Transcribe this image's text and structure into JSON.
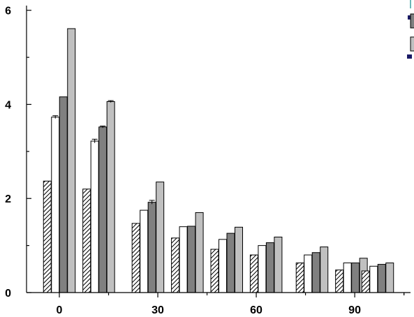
{
  "chart_data": {
    "type": "bar",
    "title": "",
    "xlabel": "",
    "ylabel": "",
    "ylim": [
      0,
      6.1
    ],
    "xlim": [
      -10,
      107
    ],
    "x_ticks": [
      "0",
      "30",
      "60",
      "90"
    ],
    "y_ticks": [
      "0",
      "2",
      "4",
      "6"
    ],
    "x_tick_values": [
      0,
      30,
      60,
      90
    ],
    "y_tick_values": [
      0,
      2,
      4,
      6
    ],
    "grid": false,
    "legend_placement": "top-right (clipped)",
    "categories": [
      0,
      12,
      27,
      39,
      51,
      63,
      77,
      90
    ],
    "series": [
      {
        "style": "hatched",
        "fill": "#ffffff",
        "values": [
          2.37,
          2.2,
          1.47,
          1.16,
          0.92,
          0.8,
          0.63,
          0.56
        ],
        "errors": [
          0,
          0,
          0,
          0,
          0,
          0,
          0,
          0
        ]
      },
      {
        "style": "solid",
        "fill": "#ffffff",
        "values": [
          3.73,
          3.22,
          1.75,
          1.4,
          1.13,
          1.0,
          0.8,
          0.72
        ],
        "errors": [
          0.03,
          0.04,
          0,
          0,
          0,
          0,
          0,
          0
        ]
      },
      {
        "style": "solid",
        "fill": "#808080",
        "values": [
          4.16,
          3.52,
          1.92,
          1.41,
          1.26,
          1.06,
          0.85,
          0.76
        ],
        "errors": [
          0,
          0.02,
          0.04,
          0,
          0,
          0,
          0,
          0
        ]
      },
      {
        "style": "solid",
        "fill": "#c0c0c0",
        "values": [
          5.61,
          4.06,
          2.35,
          1.7,
          1.39,
          1.18,
          0.97,
          0.79
        ],
        "errors": [
          0,
          0.02,
          0,
          0,
          0,
          0,
          0,
          0
        ]
      }
    ],
    "extra_bars": [
      {
        "series": 0,
        "x": 89,
        "value": 0.48
      },
      {
        "series": 1,
        "x": 89,
        "value": 0.63
      },
      {
        "series": 2,
        "x": 89,
        "value": 0.63
      },
      {
        "series": 3,
        "x": 89,
        "value": 0.73
      },
      {
        "series": 0,
        "x": 97,
        "value": 0.46
      },
      {
        "series": 1,
        "x": 97,
        "value": 0.56
      },
      {
        "series": 2,
        "x": 97,
        "value": 0.6
      },
      {
        "series": 3,
        "x": 97,
        "value": 0.63
      }
    ]
  },
  "colors": {
    "axis": "#000000",
    "legend_dark": "#808080",
    "legend_light": "#c0c0c0",
    "legend_accent": "#3aa0a0"
  }
}
